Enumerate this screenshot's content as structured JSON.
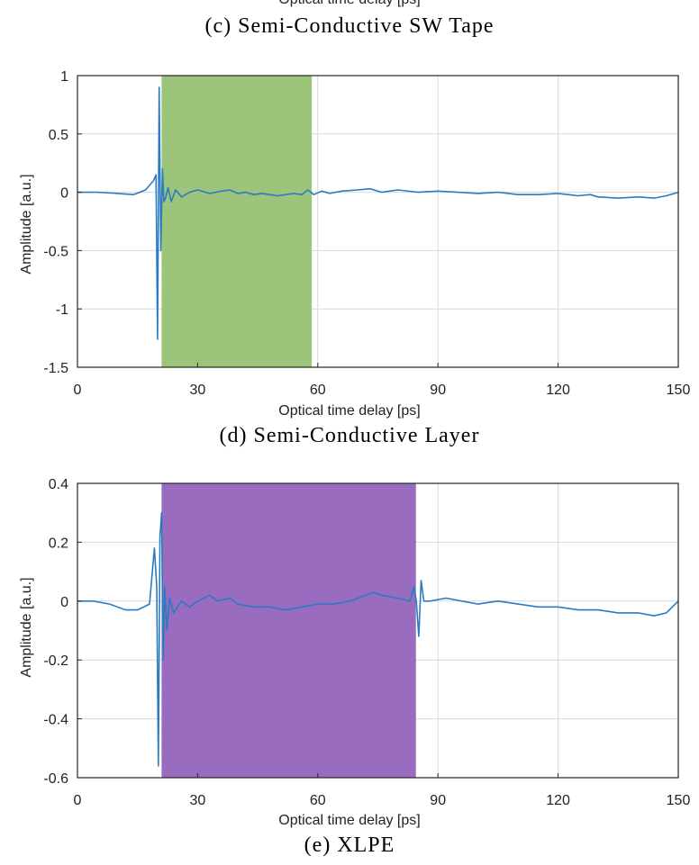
{
  "captions": {
    "top_xlabel": "Optical time delay [ps]",
    "c": "(c) Semi-Conductive SW Tape",
    "d": "(d) Semi-Conductive Layer",
    "e": "(e) XLPE"
  },
  "chart_data": [
    {
      "type": "line",
      "title": "",
      "xlabel": "Optical time delay [ps]",
      "ylabel": "Amplitude [a.u.]",
      "xlim": [
        0,
        150
      ],
      "ylim": [
        -1.5,
        1
      ],
      "xticks": [
        "0",
        "30",
        "60",
        "90",
        "120",
        "150"
      ],
      "yticks": [
        "-1.5",
        "-1",
        "-0.5",
        "0",
        "0.5",
        "1"
      ],
      "grid": true,
      "highlight": {
        "x_start": 21,
        "x_end": 58.5,
        "color": "#9cc47a"
      },
      "series": [
        {
          "color": "#2a7bc2",
          "x": [
            0,
            5,
            10,
            14,
            17,
            19,
            19.6,
            20.0,
            20.4,
            20.8,
            21.2,
            21.6,
            22.0,
            22.6,
            23.4,
            24.5,
            26,
            28,
            30,
            33,
            36,
            38,
            40,
            42,
            44,
            46,
            48,
            50,
            52,
            54,
            56,
            57.5,
            59,
            61,
            63,
            66,
            70,
            73,
            76,
            80,
            85,
            90,
            95,
            100,
            105,
            110,
            115,
            120,
            125,
            128,
            130,
            135,
            140,
            144,
            147,
            150
          ],
          "y": [
            0,
            0,
            -0.01,
            -0.02,
            0.02,
            0.1,
            0.15,
            -1.26,
            0.9,
            -0.5,
            0.2,
            -0.08,
            -0.05,
            0.04,
            -0.08,
            0.02,
            -0.04,
            0.0,
            0.02,
            -0.01,
            0.01,
            0.02,
            -0.01,
            0.0,
            -0.02,
            -0.01,
            -0.02,
            -0.03,
            -0.02,
            -0.01,
            -0.02,
            0.02,
            -0.02,
            0.01,
            -0.01,
            0.01,
            0.02,
            0.03,
            0.0,
            0.02,
            0.0,
            0.01,
            0.0,
            -0.01,
            0.0,
            -0.02,
            -0.02,
            -0.01,
            -0.03,
            -0.02,
            -0.04,
            -0.05,
            -0.04,
            -0.05,
            -0.03,
            0.0
          ]
        }
      ]
    },
    {
      "type": "line",
      "title": "",
      "xlabel": "Optical time delay [ps]",
      "ylabel": "Amplitude [a.u.]",
      "xlim": [
        0,
        150
      ],
      "ylim": [
        -0.6,
        0.4
      ],
      "xticks": [
        "0",
        "30",
        "60",
        "90",
        "120",
        "150"
      ],
      "yticks": [
        "-0.6",
        "-0.4",
        "-0.2",
        "0",
        "0.2",
        "0.4"
      ],
      "grid": true,
      "highlight": {
        "x_start": 21,
        "x_end": 84.5,
        "color": "#9a6cc0"
      },
      "series": [
        {
          "color": "#2a7bc2",
          "x": [
            0,
            4,
            8,
            12,
            15,
            18,
            19.2,
            19.8,
            20.2,
            20.6,
            21.0,
            21.4,
            21.8,
            22.3,
            23,
            24,
            26,
            28,
            30,
            33,
            35,
            38,
            40,
            44,
            48,
            52,
            56,
            60,
            64,
            68,
            72,
            74,
            76,
            80,
            83,
            84,
            84.6,
            85.2,
            85.8,
            86.5,
            88,
            92,
            96,
            100,
            105,
            110,
            115,
            120,
            125,
            130,
            135,
            140,
            144,
            147,
            150
          ],
          "y": [
            0,
            0,
            -0.01,
            -0.03,
            -0.03,
            -0.01,
            0.18,
            0.05,
            -0.56,
            0.22,
            0.3,
            -0.2,
            0.05,
            -0.1,
            0.01,
            -0.04,
            0.0,
            -0.02,
            0.0,
            0.02,
            0.0,
            0.01,
            -0.01,
            -0.02,
            -0.02,
            -0.03,
            -0.02,
            -0.01,
            -0.01,
            0.0,
            0.02,
            0.03,
            0.02,
            0.01,
            0.0,
            0.05,
            0.0,
            -0.12,
            0.07,
            0.0,
            0.0,
            0.01,
            0.0,
            -0.01,
            0.0,
            -0.01,
            -0.02,
            -0.02,
            -0.03,
            -0.03,
            -0.04,
            -0.04,
            -0.05,
            -0.04,
            0.0
          ]
        }
      ]
    }
  ]
}
